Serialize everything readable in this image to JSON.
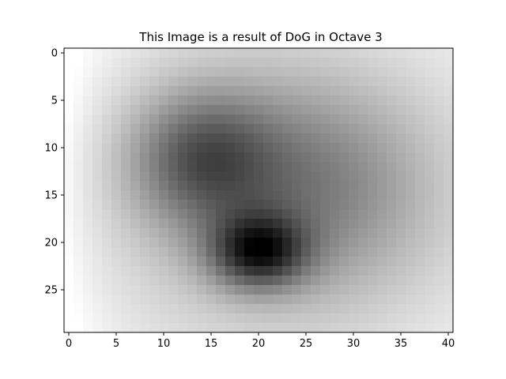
{
  "chart_data": {
    "type": "heatmap",
    "title": "This Image is a result of DoG in Octave 3",
    "colormap": "gray",
    "grid": false,
    "n_cols": 41,
    "n_rows": 30,
    "xlim": [
      -0.5,
      40.5
    ],
    "ylim": [
      29.5,
      -0.5
    ],
    "y_axis_inverted": true,
    "x_ticks": [
      0,
      5,
      10,
      15,
      20,
      25,
      30,
      35,
      40
    ],
    "x_tick_labels": [
      "0",
      "5",
      "10",
      "15",
      "20",
      "25",
      "30",
      "35",
      "40"
    ],
    "y_ticks": [
      0,
      5,
      10,
      15,
      20,
      25
    ],
    "y_tick_labels": [
      "0",
      "5",
      "10",
      "15",
      "20",
      "25"
    ],
    "intensity_model": {
      "description": "gray intensity = 1 - darkness; darkness = sum of gaussian blobs minus a left-side lift",
      "blobs": [
        {
          "cx": 20,
          "cy": 21,
          "sx": 5.0,
          "sy": 3.8,
          "amp": 0.62
        },
        {
          "cx": 14,
          "cy": 11,
          "sx": 7.5,
          "sy": 7.0,
          "amp": 0.42
        },
        {
          "cx": 26,
          "cy": 14,
          "sx": 12.0,
          "sy": 11.0,
          "amp": 0.28
        },
        {
          "cx": 20,
          "cy": 15,
          "sx": 26.0,
          "sy": 20.0,
          "amp": 0.25
        }
      ],
      "left_lift": {
        "amp": 0.12,
        "width": 4.0
      }
    }
  }
}
